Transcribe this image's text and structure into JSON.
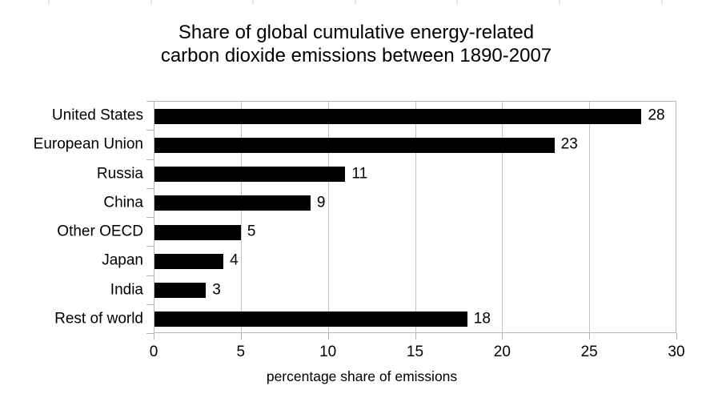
{
  "figure": {
    "background_color": "#ffffff",
    "top_edge_tick_color": "#e3e3e3"
  },
  "chart_data": {
    "type": "bar",
    "orientation": "horizontal",
    "title_lines": [
      "Share of global cumulative energy-related",
      "carbon dioxide emissions between 1890-2007"
    ],
    "categories": [
      "United States",
      "European Union",
      "Russia",
      "China",
      "Other OECD",
      "Japan",
      "India",
      "Rest of world"
    ],
    "values": [
      28,
      23,
      11,
      9,
      5,
      4,
      3,
      18
    ],
    "value_labels_shown": true,
    "xlabel": "percentage share of emissions",
    "ylabel": "",
    "xticks": [
      0,
      5,
      10,
      15,
      20,
      25,
      30
    ],
    "xlim": [
      0,
      30
    ],
    "grid": true,
    "legend": false,
    "bar_color": "#000000",
    "grid_color": "#c2c2c2",
    "axis_color": "#b6b6b6",
    "text_color": "#000000"
  }
}
